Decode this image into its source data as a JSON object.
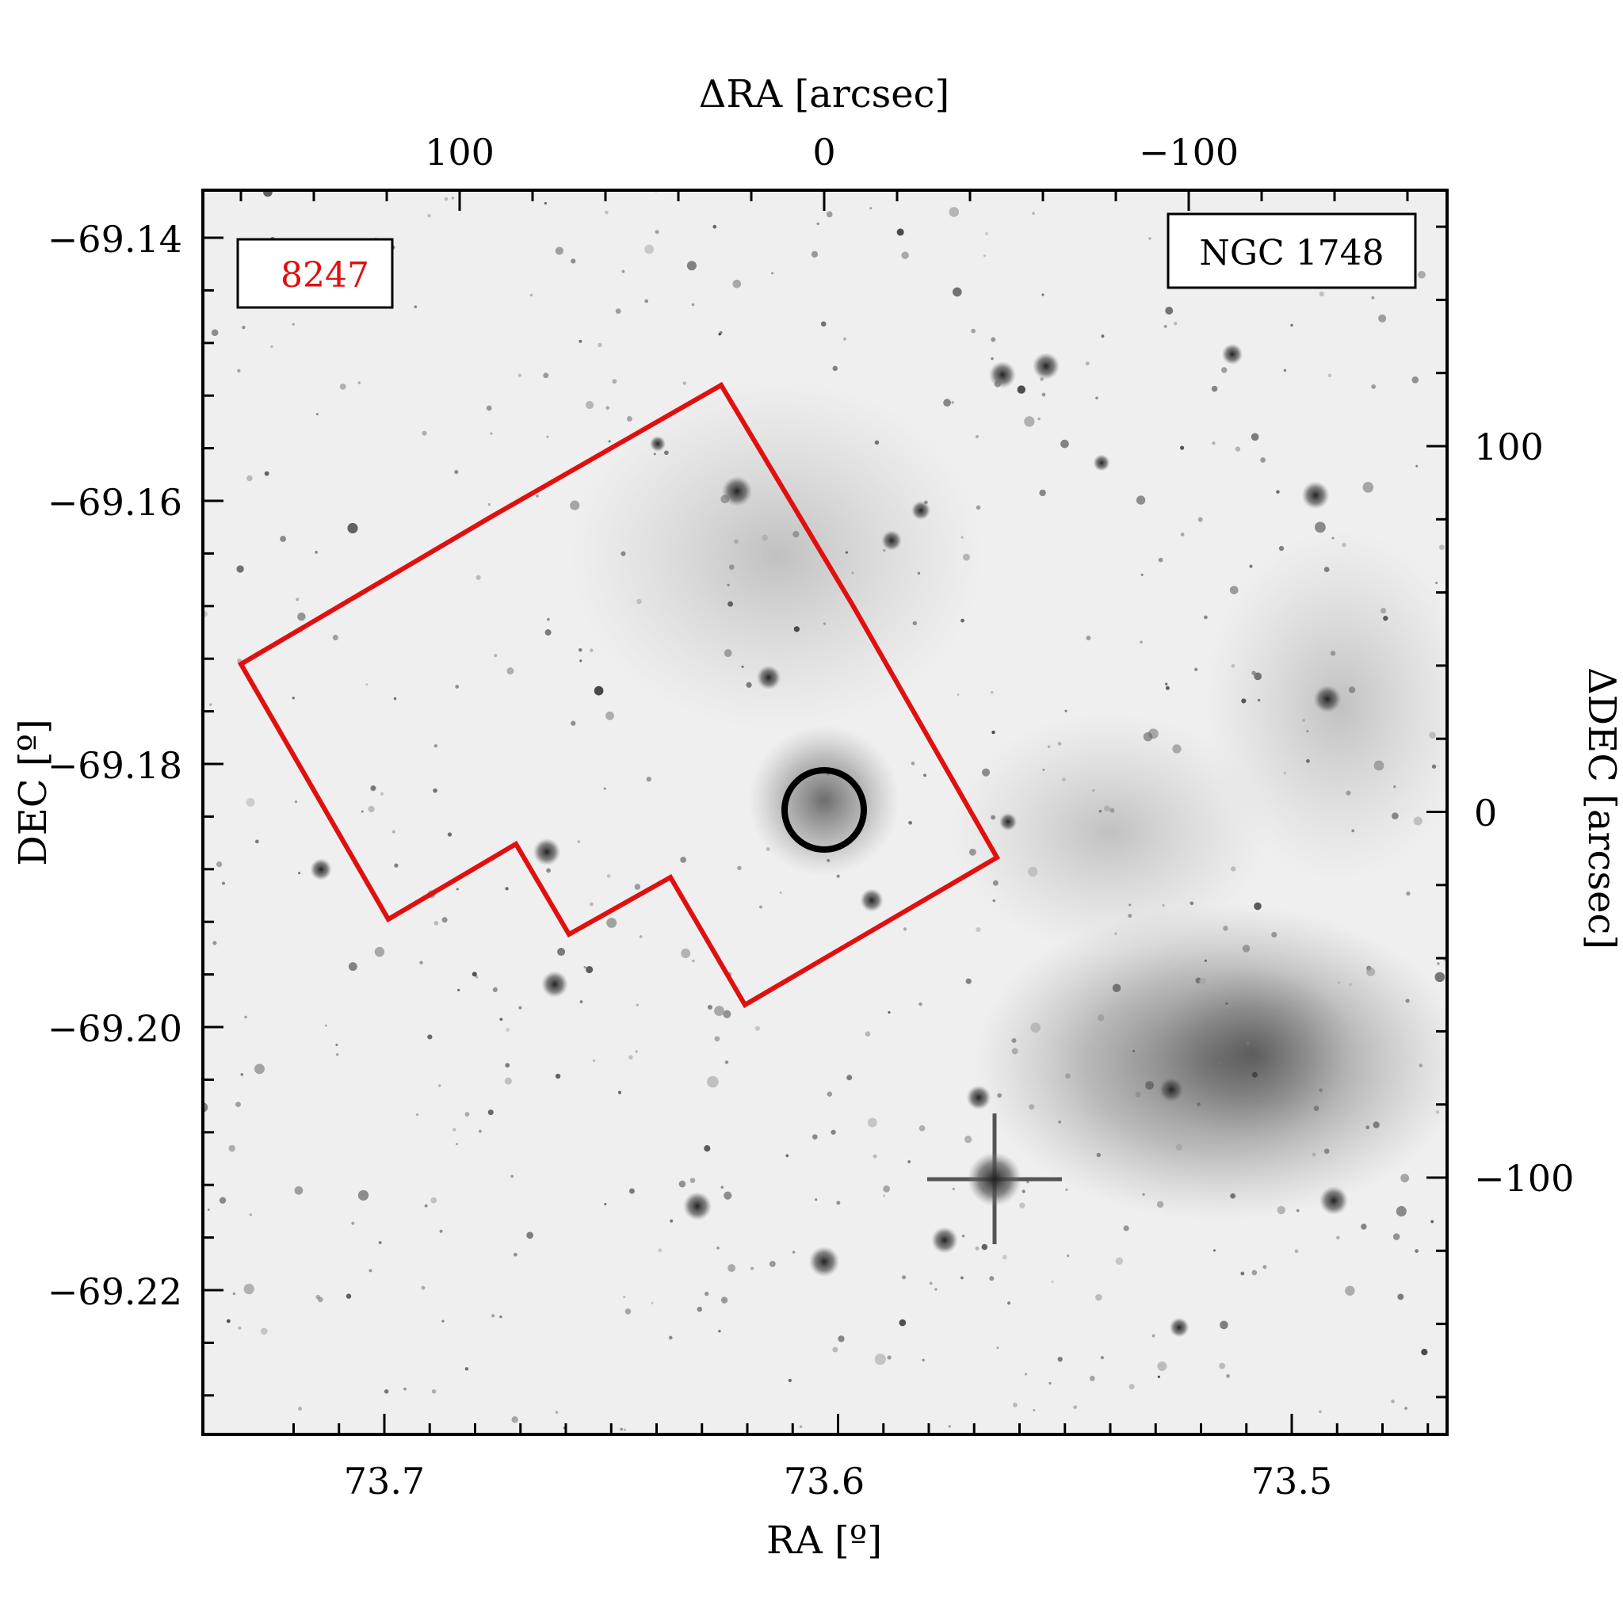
{
  "figure": {
    "bottom_axis": {
      "label": "RA [º]",
      "ticks": [
        "73.7",
        "73.6",
        "73.5"
      ]
    },
    "top_axis": {
      "label": "ΔRA [arcsec]",
      "ticks": [
        "100",
        "0",
        "−100"
      ]
    },
    "left_axis": {
      "label": "DEC [º]",
      "ticks": [
        "−69.14",
        "−69.16",
        "−69.18",
        "−69.20",
        "−69.22"
      ]
    },
    "right_axis": {
      "label": "ΔDEC [arcsec]",
      "ticks": [
        "100",
        "0",
        "−100"
      ]
    },
    "id_label": "8247",
    "cluster_name": "NGC 1748",
    "colors": {
      "footprint": "#e01010",
      "id_text": "#e01010",
      "circle": "#000000",
      "background": "#f2f2f2"
    }
  }
}
